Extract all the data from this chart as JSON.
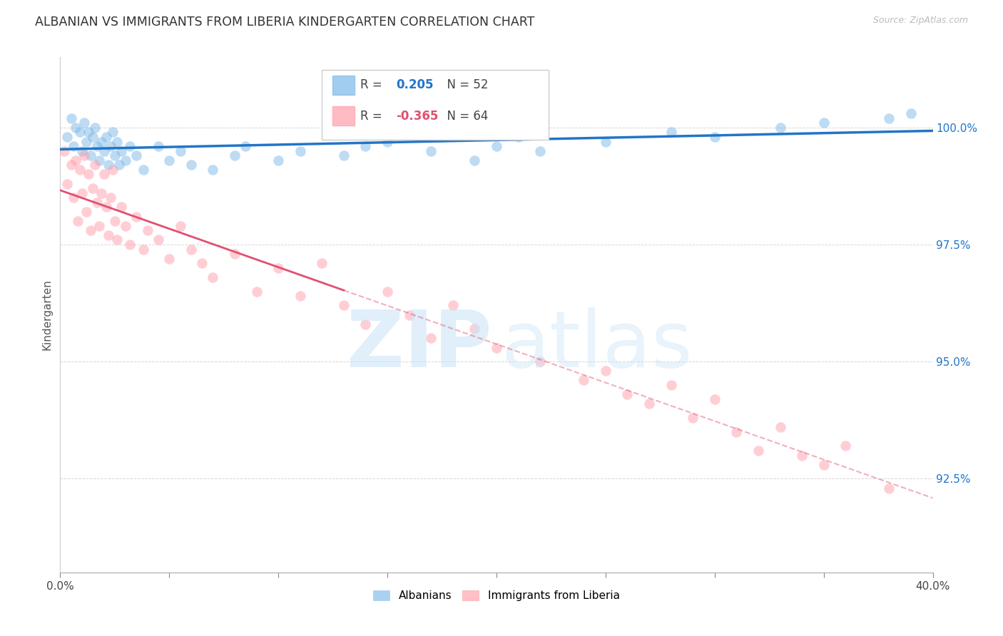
{
  "title": "ALBANIAN VS IMMIGRANTS FROM LIBERIA KINDERGARTEN CORRELATION CHART",
  "source": "Source: ZipAtlas.com",
  "ylabel": "Kindergarten",
  "legend_albanians": "Albanians",
  "legend_liberia": "Immigrants from Liberia",
  "r_albanians": 0.205,
  "n_albanians": 52,
  "r_liberia": -0.365,
  "n_liberia": 64,
  "blue_color": "#7CB9E8",
  "pink_color": "#FF9EAB",
  "blue_line_color": "#2175C8",
  "pink_line_color": "#E05070",
  "xlim": [
    0,
    40
  ],
  "ylim": [
    90.5,
    101.5
  ],
  "ytick_vals": [
    92.5,
    95.0,
    97.5,
    100.0
  ],
  "solid_cutoff": 13.0,
  "albanians_x": [
    0.3,
    0.5,
    0.6,
    0.7,
    0.9,
    1.0,
    1.1,
    1.2,
    1.3,
    1.4,
    1.5,
    1.6,
    1.7,
    1.8,
    1.9,
    2.0,
    2.1,
    2.2,
    2.3,
    2.4,
    2.5,
    2.6,
    2.7,
    2.8,
    3.0,
    3.2,
    3.5,
    3.8,
    4.5,
    5.0,
    5.5,
    6.0,
    7.0,
    8.0,
    8.5,
    10.0,
    11.0,
    13.0,
    14.0,
    15.0,
    17.0,
    19.0,
    20.0,
    21.0,
    22.0,
    25.0,
    28.0,
    30.0,
    33.0,
    35.0,
    38.0,
    39.0
  ],
  "albanians_y": [
    99.8,
    100.2,
    99.6,
    100.0,
    99.9,
    99.5,
    100.1,
    99.7,
    99.9,
    99.4,
    99.8,
    100.0,
    99.6,
    99.3,
    99.7,
    99.5,
    99.8,
    99.2,
    99.6,
    99.9,
    99.4,
    99.7,
    99.2,
    99.5,
    99.3,
    99.6,
    99.4,
    99.1,
    99.6,
    99.3,
    99.5,
    99.2,
    99.1,
    99.4,
    99.6,
    99.3,
    99.5,
    99.4,
    99.6,
    99.7,
    99.5,
    99.3,
    99.6,
    99.8,
    99.5,
    99.7,
    99.9,
    99.8,
    100.0,
    100.1,
    100.2,
    100.3
  ],
  "liberia_x": [
    0.2,
    0.3,
    0.5,
    0.6,
    0.7,
    0.8,
    0.9,
    1.0,
    1.1,
    1.2,
    1.3,
    1.4,
    1.5,
    1.6,
    1.7,
    1.8,
    1.9,
    2.0,
    2.1,
    2.2,
    2.3,
    2.4,
    2.5,
    2.6,
    2.8,
    3.0,
    3.2,
    3.5,
    3.8,
    4.0,
    4.5,
    5.0,
    5.5,
    6.0,
    6.5,
    7.0,
    8.0,
    9.0,
    10.0,
    11.0,
    12.0,
    13.0,
    14.0,
    15.0,
    16.0,
    17.0,
    18.0,
    19.0,
    20.0,
    22.0,
    24.0,
    25.0,
    26.0,
    27.0,
    28.0,
    29.0,
    30.0,
    31.0,
    32.0,
    33.0,
    34.0,
    35.0,
    36.0,
    38.0
  ],
  "liberia_y": [
    99.5,
    98.8,
    99.2,
    98.5,
    99.3,
    98.0,
    99.1,
    98.6,
    99.4,
    98.2,
    99.0,
    97.8,
    98.7,
    99.2,
    98.4,
    97.9,
    98.6,
    99.0,
    98.3,
    97.7,
    98.5,
    99.1,
    98.0,
    97.6,
    98.3,
    97.9,
    97.5,
    98.1,
    97.4,
    97.8,
    97.6,
    97.2,
    97.9,
    97.4,
    97.1,
    96.8,
    97.3,
    96.5,
    97.0,
    96.4,
    97.1,
    96.2,
    95.8,
    96.5,
    96.0,
    95.5,
    96.2,
    95.7,
    95.3,
    95.0,
    94.6,
    94.8,
    94.3,
    94.1,
    94.5,
    93.8,
    94.2,
    93.5,
    93.1,
    93.6,
    93.0,
    92.8,
    93.2,
    92.3
  ]
}
